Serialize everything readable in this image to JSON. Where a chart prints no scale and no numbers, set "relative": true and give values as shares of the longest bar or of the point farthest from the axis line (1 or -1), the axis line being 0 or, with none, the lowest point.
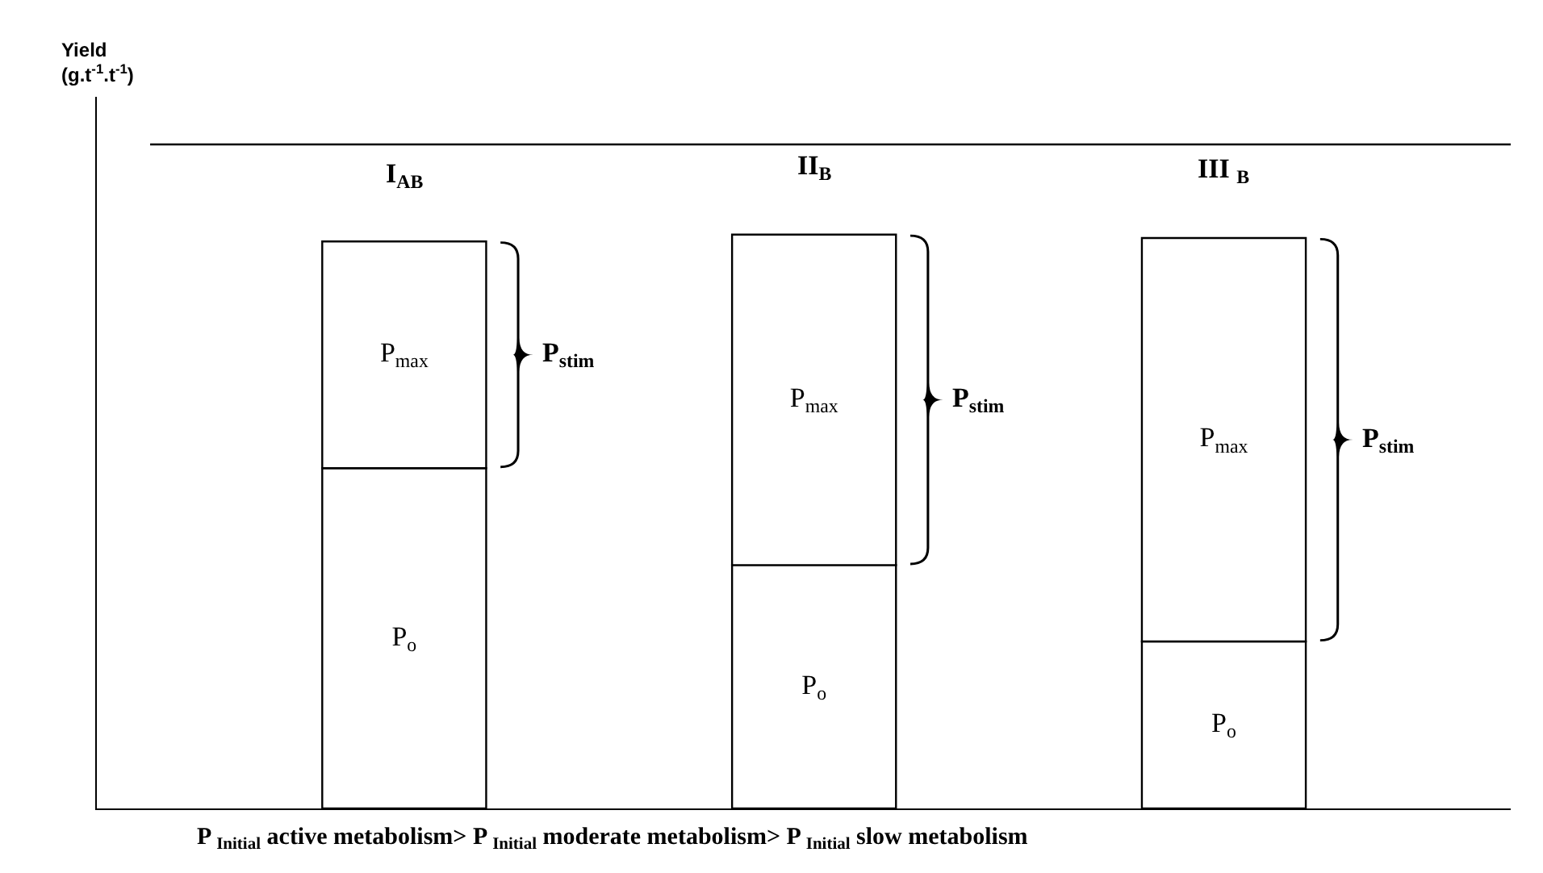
{
  "chart_data": {
    "type": "bar",
    "stacked": true,
    "relative": true,
    "categories": [
      "I$_{AB}$",
      "II$_{B}$",
      "III $_{B}$"
    ],
    "series": [
      {
        "name": "P$_{o}$",
        "color": "#ffffff",
        "values": [
          0.593,
          0.424,
          0.291
        ]
      },
      {
        "name": "P$_{max}$",
        "color": "#ffffff",
        "values": [
          0.395,
          0.576,
          0.703
        ]
      }
    ],
    "annotations": [
      "P$_{stim}$",
      "P$_{stim}$",
      "P$_{stim}$",
      "P $_{Initial}$ active metabolism> P $_{Initial}$ moderate metabolism> P $_{Initial}$ slow metabolism",
      "Yield (g.t$^{-1}$.t$^{-1}$)"
    ],
    "ref_lines": [
      {
        "axis": "y",
        "value": 1.157
      }
    ],
    "legend": false,
    "tick_labels": false
  }
}
